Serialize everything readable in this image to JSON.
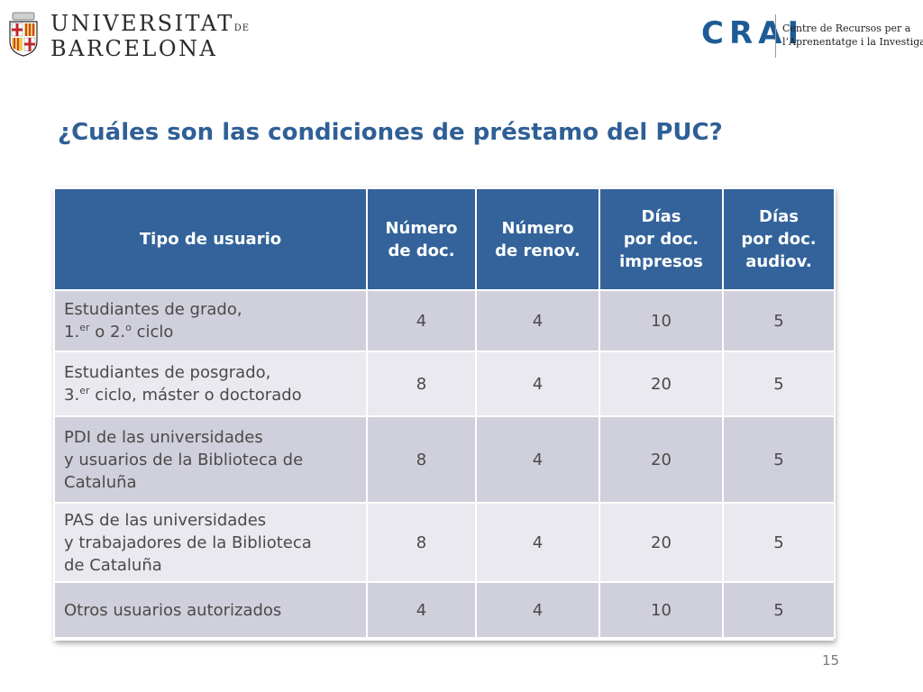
{
  "header": {
    "ub_line1": "UNIVERSITAT",
    "ub_line1_small": "DE",
    "ub_line2": "BARCELONA",
    "crai_mark": "CRAI",
    "crai_line1": "Centre de Recursos per a",
    "crai_line2": "l’Aprenentatge i la Investigació"
  },
  "title": "¿Cuáles son las condiciones de préstamo del PUC?",
  "table": {
    "headers": [
      [
        "Tipo de usuario"
      ],
      [
        "Número",
        "de doc."
      ],
      [
        "Número",
        "de renov."
      ],
      [
        "Días",
        "por doc.",
        "impresos"
      ],
      [
        "Días",
        "por doc.",
        "audiov."
      ]
    ],
    "rows": [
      {
        "cat": {
          "l1": "Estudiantes de grado,",
          "l2_pre": "1.",
          "l2_sup": "er",
          "l2_mid": " o 2.",
          "l2_sup2": "o",
          "l2_post": " ciclo"
        },
        "vals": [
          "4",
          "4",
          "10",
          "5"
        ]
      },
      {
        "cat": {
          "l1": "Estudiantes de posgrado,",
          "l2_pre": "3.",
          "l2_sup": "er",
          "l2_post": " ciclo, máster o doctorado"
        },
        "vals": [
          "8",
          "4",
          "20",
          "5"
        ]
      },
      {
        "cat": {
          "l1": "PDI de las universidades",
          "l2": "y usuarios de la Biblioteca de",
          "l3": "Cataluña"
        },
        "vals": [
          "8",
          "4",
          "20",
          "5"
        ]
      },
      {
        "cat": {
          "l1": "PAS de las universidades",
          "l2": "y trabajadores de la Biblioteca",
          "l3": "de Cataluña"
        },
        "vals": [
          "8",
          "4",
          "20",
          "5"
        ]
      },
      {
        "cat": {
          "l1": "Otros usuarios autorizados"
        },
        "vals": [
          "4",
          "4",
          "10",
          "5"
        ]
      }
    ]
  },
  "page_number": "15",
  "colors": {
    "header_blue": "#33639a",
    "title_blue": "#2f5f96",
    "row_dark": "#d0d0dc",
    "row_light": "#e9e9ef",
    "crai_blue": "#1e5b96",
    "shield_red": "#c0272d"
  }
}
